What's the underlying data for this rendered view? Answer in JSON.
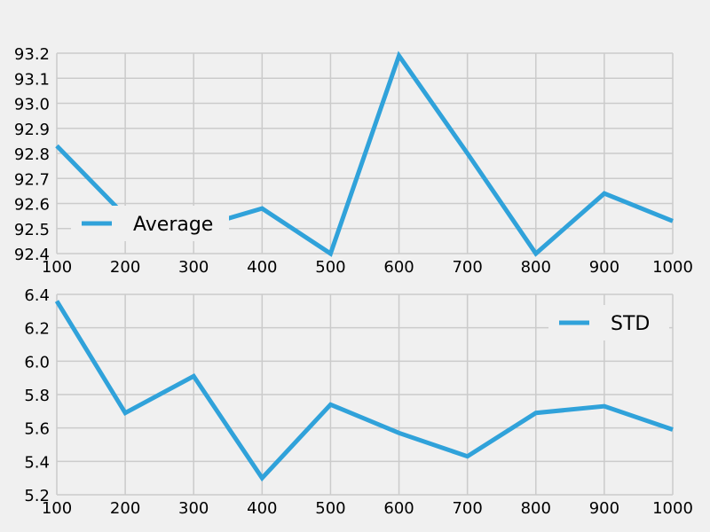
{
  "chart_data": [
    {
      "type": "line",
      "title": "",
      "xlabel": "",
      "ylabel": "",
      "x": [
        100,
        200,
        300,
        400,
        500,
        600,
        700,
        800,
        900,
        1000
      ],
      "series": [
        {
          "name": "Average",
          "values": [
            92.83,
            92.55,
            92.5,
            92.58,
            92.4,
            93.19,
            92.8,
            92.4,
            92.64,
            92.53
          ]
        }
      ],
      "xlim": [
        100,
        1000
      ],
      "ylim": [
        92.4,
        93.2
      ],
      "xticks": [
        100,
        200,
        300,
        400,
        500,
        600,
        700,
        800,
        900,
        1000
      ],
      "yticks": [
        92.4,
        92.5,
        92.6,
        92.7,
        92.8,
        92.9,
        93.0,
        93.1,
        93.2
      ],
      "xtick_labels": [
        "100",
        "200",
        "300",
        "400",
        "500",
        "600",
        "700",
        "800",
        "900",
        "1000"
      ],
      "ytick_labels": [
        "92.4",
        "92.5",
        "92.6",
        "92.7",
        "92.8",
        "92.9",
        "93.0",
        "93.1",
        "93.2"
      ],
      "grid": true,
      "legend": "lower-left",
      "color": "#30a2da"
    },
    {
      "type": "line",
      "title": "",
      "xlabel": "",
      "ylabel": "",
      "x": [
        100,
        200,
        300,
        400,
        500,
        600,
        700,
        800,
        900,
        1000
      ],
      "series": [
        {
          "name": "STD",
          "values": [
            6.36,
            5.69,
            5.91,
            5.3,
            5.74,
            5.57,
            5.43,
            5.69,
            5.73,
            5.59
          ]
        }
      ],
      "xlim": [
        100,
        1000
      ],
      "ylim": [
        5.2,
        6.4
      ],
      "xticks": [
        100,
        200,
        300,
        400,
        500,
        600,
        700,
        800,
        900,
        1000
      ],
      "yticks": [
        5.2,
        5.4,
        5.6,
        5.8,
        6.0,
        6.2,
        6.4
      ],
      "xtick_labels": [
        "100",
        "200",
        "300",
        "400",
        "500",
        "600",
        "700",
        "800",
        "900",
        "1000"
      ],
      "ytick_labels": [
        "5.2",
        "5.4",
        "5.6",
        "5.8",
        "6.0",
        "6.2",
        "6.4"
      ],
      "grid": true,
      "legend": "upper-right",
      "color": "#30a2da"
    }
  ]
}
